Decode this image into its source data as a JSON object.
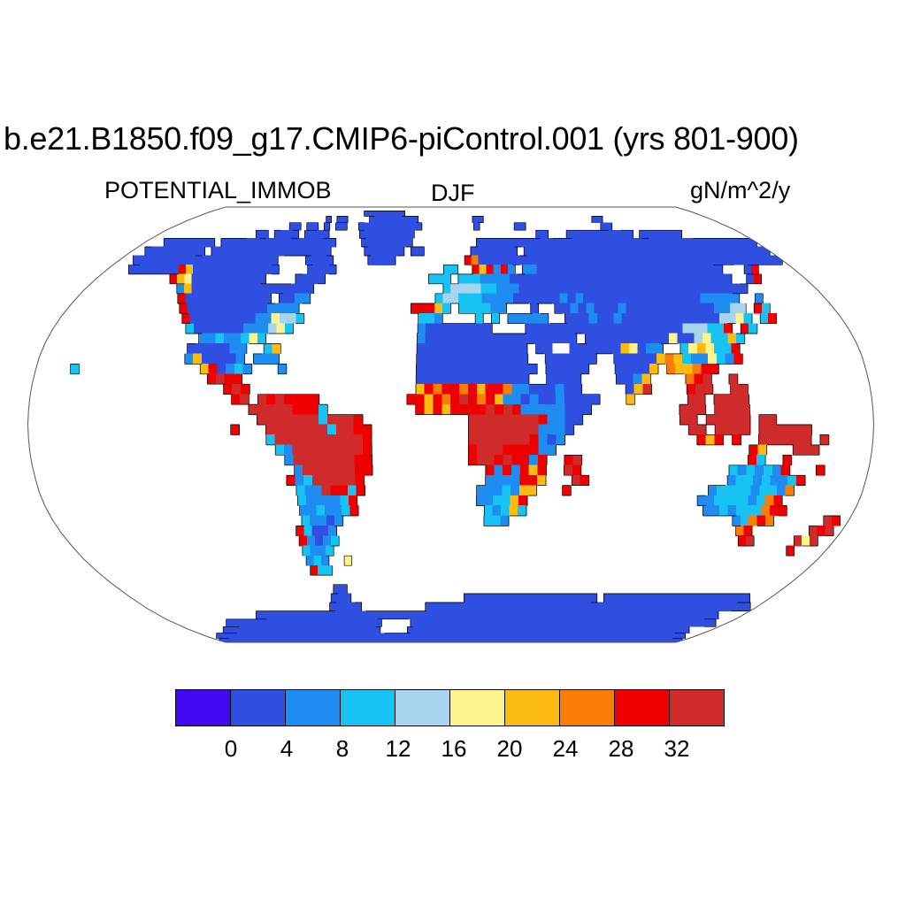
{
  "title": "b.e21.B1850.f09_g17.CMIP6-piControl.001 (yrs 801-900)",
  "subtitle_left": "POTENTIAL_IMMOB",
  "subtitle_center": "DJF",
  "subtitle_right": "gN/m^2/y",
  "chart_data": {
    "type": "heatmap",
    "projection": "robinson",
    "variable": "POTENTIAL_IMMOB",
    "season": "DJF",
    "units": "gN/m^2/y",
    "title": "b.e21.B1850.f09_g17.CMIP6-piControl.001 (yrs 801-900)",
    "legend_position": "bottom",
    "colorbar": {
      "boundaries": [
        0,
        4,
        8,
        12,
        16,
        20,
        24,
        28,
        32
      ],
      "colors": [
        "#4209F2",
        "#2E4FE0",
        "#1E8CF0",
        "#17C3F2",
        "#A8D4F0",
        "#FBF38B",
        "#FCBB10",
        "#FB7D05",
        "#EE0000",
        "#CF2B2B"
      ],
      "no_data_color": "#FFFFFF",
      "coastline_color": "#000000",
      "outline_color": "#555555"
    },
    "grid": {
      "cols": 96,
      "rows": 48,
      "lon_start": -180,
      "lat_start": 90,
      "cell_deg": 3.75,
      "legend": {
        ".": "ocean/no-data",
        "w": "white land",
        "0-9": "colorbar class index"
      },
      "rows_data": [
        "................................................................................................",
        "...............................11111111.........................................................",
        ".........................1.11....111111111..........11....................11....................",
        "....................11.11.1.11..11111111111.........1......11.............11....................",
        "................11.1111.1111.....111111111....................11...11111111111.1111111..........",
        "...11111111.111111111111111111....11111111..........11111111111111111111111111111111111111111111",
        "..111111111.111111111111111111.....111111.11.......1111111.1111111111111111111111111111111111111",
        "..111111111111111111111....1111.....1111..........8711111111111111111111111111111111111111111111",
        "...111111186111111111111....1111...............33..868282.2211111111111111111111111111...18.....",
        "..........8651111111111....1111..............333.3332222111111111111111111111111111111..18......",
        "............261111111111111111.................3444433222111111111111111111111111111111.........",
        ".............811111111111.1122................344333222211111121211111111111111122222..2........",
        "..............811111111112222..............88863.3333 22...1..112121112111111111112244.83.........",
        "...............81111111122544 3..............332....3.3.22222..111211211111111111144 53.38.........",
        "................3111111222453...............21 1111111....111111111111111111144433 8.83..........",
        "..................22322353..................2111111111111111111.1111111111511453363.............",
        ".................1111122..36................1111111111111.11ww11111 1651 22..3565338.............",
        ".................261111 2.222................1111111111111..111111..11111676 3225328..............",
        "....3..............681232...2...............11111111111111.11111...11116.766788.................",
        "....................8988....................1111111111111..1111....1126....789..9...............",
        "......................898...................687887868872211 1211.....169....899..99..............",
        ".......................89.9898888..........8868789878622121121111...6......99.9999..............",
        ".........................99999888 3..........86868888989822222111..........999.9999..............",
        "..........................99999993999 8............99999999 82211...........99.99999.99...........",
        ".......................8...99999993998 8...........99999999 2221.............99.9999.999999.......",
        "...........................39999999999 8...........99999998212...............868.8..999999.9.....",
        "............................329999999 98...........89998888 22......................86...999.......",
        ".............................29999999 88...........899898828..89...................83..8.........",
        "..............................299999988.............8282868..98.................3232328...8.....",
        ".............................8239999 98..............2222886...98................2332322 38........",
        "..............................32298838.............22232 66...8................2333323327........",
        "..............................3222238..............223368....................2233332378........",
        "..............................2232238...............32363.....................2232333788........",
        "..............................32212.................332...........................23787......98.",
        ".............................83112.................................................78.......989.",
        ".............................82123..................................................89.....959..",
        ".............................3223..........................................................8....",
        ".............................232..5.............................................................",
        ".............................833................................................................",
        "................................................................................................",
        "...............................11...............................................................",
        "..............................111.................11111111111111111111.1111111111111111111111...",
        ".............................11111..........111111111111111111111111111111111111111111111111111.",
        "................1111111111111111111111111111111111111111111111111111111111111111111111111111....",
        ".........111111111111111111111111111.....11111111111111111111111111111111111111111111111111111..",
        "......11111111111111111111111111111.....1111111111111111111111111111111111111111111111111111....",
        "..11111111111111111111111111111111111111111111111111111111111111111111111111111111111111111111..",
        "111111111111111111111111111111111111111111111111111111111111111111111111111111111111111111111111"
      ]
    }
  }
}
